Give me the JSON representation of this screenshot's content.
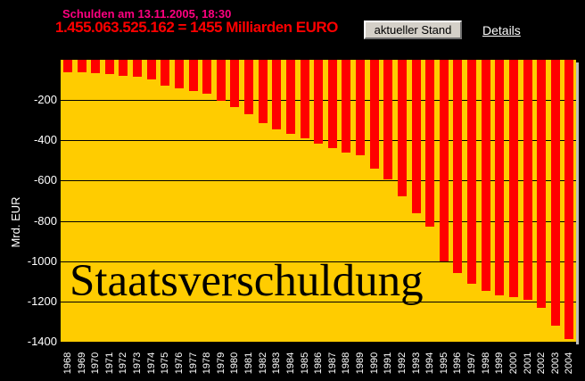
{
  "header": {
    "date_line": "Schulden am 13.11.2005, 18:30",
    "amount_line": "1.455.063.525.162 = 1455 Milliarden EURO",
    "button_label": "aktueller Stand",
    "details_label": "Details"
  },
  "chart_data": {
    "type": "bar",
    "title": "Staatsverschuldung",
    "xlabel": "",
    "ylabel": "Mrd. EUR",
    "categories": [
      "1968",
      "1969",
      "1970",
      "1971",
      "1972",
      "1973",
      "1974",
      "1975",
      "1976",
      "1977",
      "1978",
      "1979",
      "1980",
      "1981",
      "1982",
      "1983",
      "1984",
      "1985",
      "1986",
      "1987",
      "1988",
      "1989",
      "1990",
      "1991",
      "1992",
      "1993",
      "1994",
      "1995",
      "1996",
      "1997",
      "1998",
      "1999",
      "2000",
      "2001",
      "2002",
      "2003",
      "2004"
    ],
    "values": [
      -62,
      -64,
      -66,
      -69,
      -79,
      -86,
      -99,
      -130,
      -141,
      -155,
      -168,
      -203,
      -235,
      -271,
      -313,
      -344,
      -366,
      -388,
      -416,
      -440,
      -462,
      -476,
      -542,
      -592,
      -678,
      -763,
      -830,
      -1000,
      -1060,
      -1110,
      -1148,
      -1170,
      -1178,
      -1193,
      -1230,
      -1320,
      -1388
    ],
    "ylim": [
      -1400,
      0
    ],
    "yticks": [
      -200,
      -400,
      -600,
      -800,
      -1000,
      -1200,
      -1400
    ],
    "grid": "horizontal",
    "legend": "none",
    "colors": {
      "bar": "#FF0000",
      "plot_background": "#FFCC00",
      "page_background": "#000000",
      "gridline": "#000000",
      "axis_text": "#FFFFFF",
      "title_text": "#000000",
      "date_text": "#FF0080",
      "amount_text": "#FF0000",
      "button_face": "#D4D0C8",
      "link_text": "#FFFFFF"
    }
  }
}
